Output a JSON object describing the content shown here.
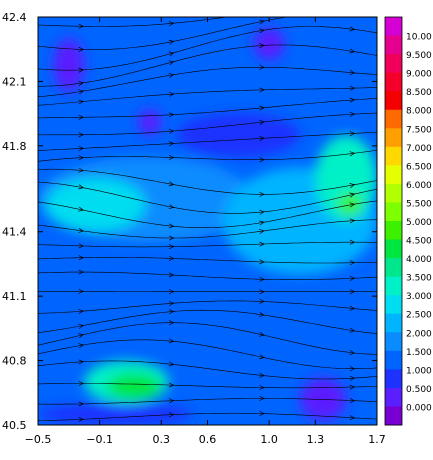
{
  "chart_data": {
    "type": "heatmap",
    "subtype": "filled-contour map with streamlines",
    "title": "",
    "xlabel": "",
    "ylabel": "",
    "xlim": [
      -0.5,
      1.7
    ],
    "ylim": [
      40.5,
      42.4
    ],
    "x_ticks": [
      -0.5,
      -0.1,
      0.3,
      0.6,
      1.0,
      1.3,
      1.7
    ],
    "x_tick_labels": [
      "−0.5",
      "−0.1",
      "0.3",
      "0.6",
      "1.0",
      "1.3",
      "1.7"
    ],
    "y_ticks": [
      40.5,
      40.8,
      41.1,
      41.4,
      41.8,
      42.1,
      42.4
    ],
    "y_tick_labels": [
      "40.5",
      "40.8",
      "41.1",
      "41.4",
      "41.8",
      "42.1",
      "42.4"
    ],
    "grid": false,
    "legend": {
      "type": "colorbar",
      "placement": "right",
      "levels": [
        {
          "label": "10.00",
          "color": "#d400d4"
        },
        {
          "label": "9.500",
          "color": "#e6008f"
        },
        {
          "label": "9.000",
          "color": "#f0005a"
        },
        {
          "label": "8.500",
          "color": "#f5002a"
        },
        {
          "label": "8.000",
          "color": "#f50000"
        },
        {
          "label": "7.500",
          "color": "#ff6a00"
        },
        {
          "label": "7.000",
          "color": "#ffa000"
        },
        {
          "label": "6.500",
          "color": "#ffd800"
        },
        {
          "label": "6.000",
          "color": "#e6ff00"
        },
        {
          "label": "5.500",
          "color": "#b2ff00"
        },
        {
          "label": "5.000",
          "color": "#7dff00"
        },
        {
          "label": "4.500",
          "color": "#3cf000"
        },
        {
          "label": "4.000",
          "color": "#00e640"
        },
        {
          "label": "3.500",
          "color": "#00e68c"
        },
        {
          "label": "3.000",
          "color": "#00f0c8"
        },
        {
          "label": "2.500",
          "color": "#00dcf0"
        },
        {
          "label": "2.000",
          "color": "#00b4ff"
        },
        {
          "label": "1.500",
          "color": "#0a8cff"
        },
        {
          "label": "1.000",
          "color": "#0064ff"
        },
        {
          "label": "0.500",
          "color": "#1e32ff"
        },
        {
          "label": "0.000",
          "color": "#5a1eff"
        },
        {
          "label": "",
          "color": "#7800d2"
        }
      ]
    },
    "field_regions": [
      {
        "x": [
          -0.5,
          1.7
        ],
        "y": [
          40.5,
          42.4
        ],
        "level": "1.000"
      },
      {
        "x": [
          -0.5,
          0.9
        ],
        "y": [
          41.35,
          41.75
        ],
        "level": "1.500"
      },
      {
        "x": [
          0.7,
          1.7
        ],
        "y": [
          41.2,
          41.7
        ],
        "level": "2.000"
      },
      {
        "x": [
          -0.45,
          0.2
        ],
        "y": [
          41.4,
          41.65
        ],
        "level": "2.500"
      },
      {
        "x": [
          1.3,
          1.7
        ],
        "y": [
          41.45,
          41.85
        ],
        "level": "3.000"
      },
      {
        "x": [
          -0.2,
          0.35
        ],
        "y": [
          40.6,
          40.8
        ],
        "level": "3.000"
      },
      {
        "x": [
          -0.05,
          0.3
        ],
        "y": [
          40.62,
          40.74
        ],
        "level": "4.000"
      },
      {
        "x": [
          1.45,
          1.6
        ],
        "y": [
          41.48,
          41.58
        ],
        "level": "4.500"
      },
      {
        "x": [
          -0.5,
          0.5
        ],
        "y": [
          40.5,
          40.6
        ],
        "level": "0.500"
      },
      {
        "x": [
          0.4,
          1.2
        ],
        "y": [
          41.75,
          41.95
        ],
        "level": "0.500"
      },
      {
        "x": [
          -0.4,
          -0.2
        ],
        "y": [
          42.05,
          42.3
        ],
        "level": "0.000"
      },
      {
        "x": [
          1.2,
          1.5
        ],
        "y": [
          40.52,
          40.72
        ],
        "level": "0.000"
      },
      {
        "x": [
          0.15,
          0.3
        ],
        "y": [
          41.85,
          41.97
        ],
        "level": "0.000"
      },
      {
        "x": [
          0.9,
          1.1
        ],
        "y": [
          42.2,
          42.35
        ],
        "level": "0.000"
      }
    ],
    "streamline_direction": "west to east"
  }
}
